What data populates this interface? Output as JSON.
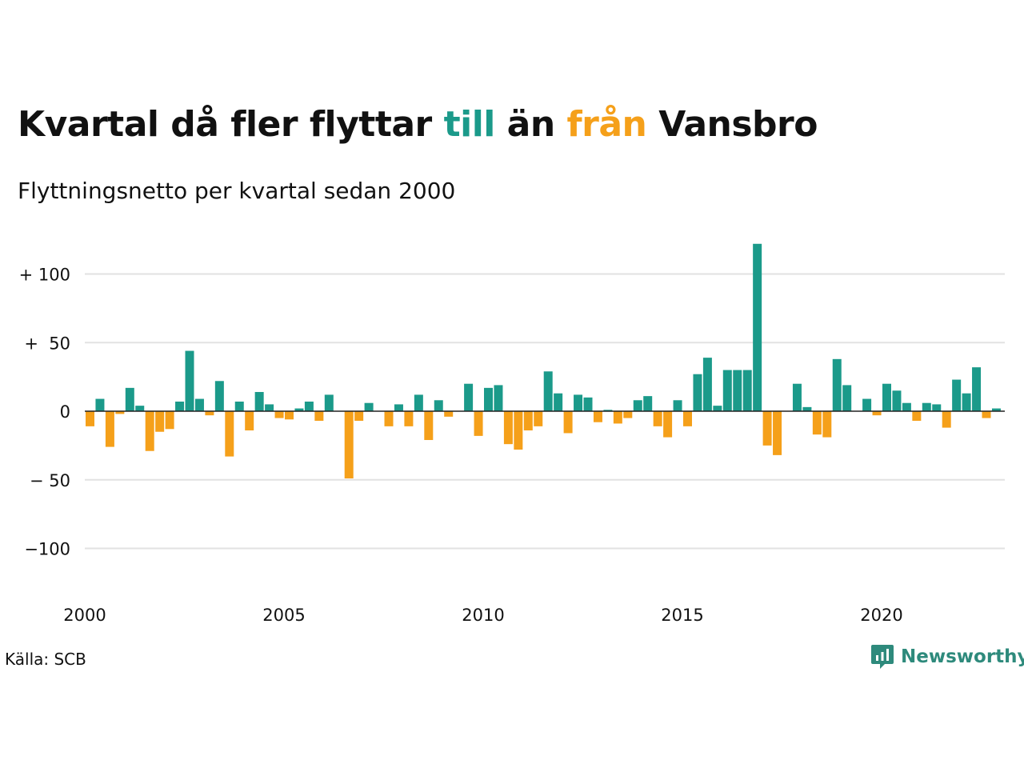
{
  "title": {
    "part1": "Kvartal då fler flyttar ",
    "till": "till",
    "part2": " än ",
    "fran": "från",
    "part3": " Vansbro"
  },
  "subtitle": "Flyttningsnetto per kvartal sedan 2000",
  "source": "Källa: SCB",
  "brand": "Newsworthy",
  "colors": {
    "positive": "#1b9a8a",
    "negative": "#f5a01a",
    "grid": "#e2e2e2",
    "zero": "#222222"
  },
  "chart_data": {
    "type": "bar",
    "title": "Kvartal då fler flyttar till än från Vansbro",
    "subtitle": "Flyttningsnetto per kvartal sedan 2000",
    "ylim": [
      -135,
      125
    ],
    "yticks": [
      {
        "value": 100,
        "label": "+ 100"
      },
      {
        "value": 50,
        "label": "+  50"
      },
      {
        "value": 0,
        "label": "0"
      },
      {
        "value": -50,
        "label": "− 50"
      },
      {
        "value": -100,
        "label": "−100"
      }
    ],
    "xticks": [
      {
        "label": "2000",
        "quarter": 0
      },
      {
        "label": "2005",
        "quarter": 20
      },
      {
        "label": "2010",
        "quarter": 40
      },
      {
        "label": "2015",
        "quarter": 60
      },
      {
        "label": "2020",
        "quarter": 80
      }
    ],
    "grid": true,
    "start": "2000 Q1",
    "values": [
      -11,
      9,
      -26,
      -2,
      17,
      4,
      -29,
      -15,
      -13,
      7,
      44,
      9,
      -3,
      22,
      -33,
      7,
      -14,
      14,
      5,
      -5,
      -6,
      2,
      7,
      -7,
      12,
      0,
      -49,
      -7,
      6,
      0,
      -11,
      5,
      -11,
      12,
      -21,
      8,
      -4,
      0,
      20,
      -18,
      17,
      19,
      -24,
      -28,
      -14,
      -11,
      29,
      13,
      -16,
      12,
      10,
      -8,
      1,
      -9,
      -5,
      8,
      11,
      -11,
      -19,
      8,
      -11,
      27,
      39,
      4,
      30,
      30,
      30,
      122,
      -25,
      -32,
      0,
      20,
      3,
      -17,
      -19,
      38,
      19,
      0,
      9,
      -3,
      20,
      15,
      6,
      -7,
      6,
      5,
      -12,
      23,
      13,
      32,
      -5,
      2
    ]
  }
}
